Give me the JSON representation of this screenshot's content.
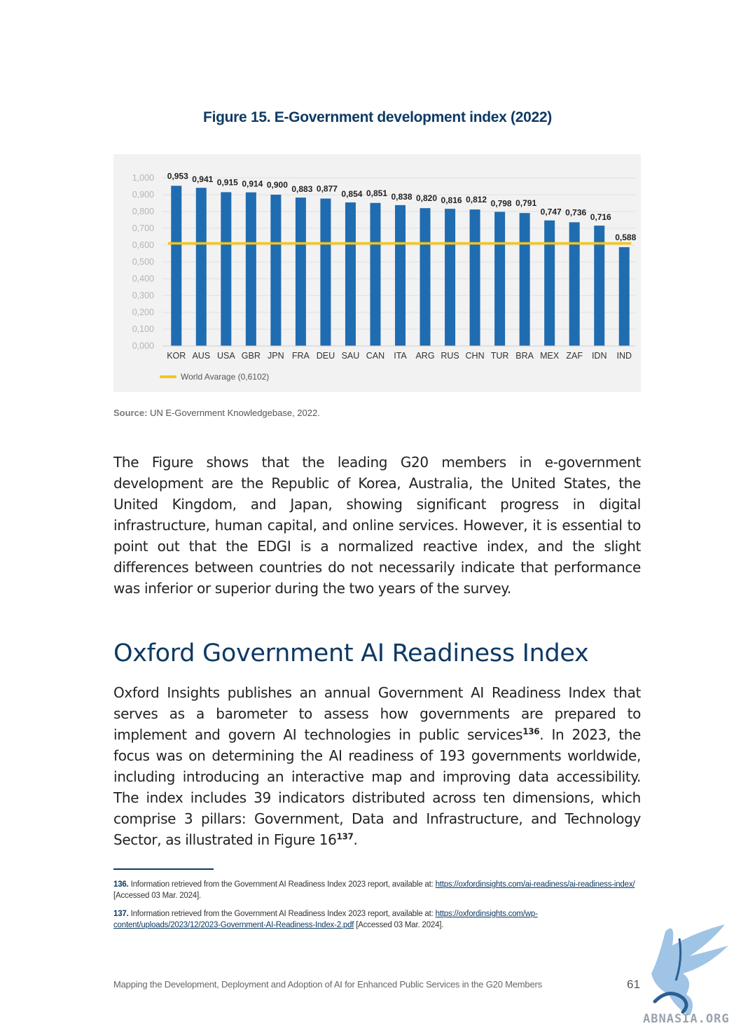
{
  "figure": {
    "title": "Figure 15. E-Government development index (2022)",
    "source_label": "Source:",
    "source_text": "UN E-Government Knowledgebase, 2022."
  },
  "chart_data": {
    "type": "bar",
    "title": "",
    "categories": [
      "KOR",
      "AUS",
      "USA",
      "GBR",
      "JPN",
      "FRA",
      "DEU",
      "SAU",
      "CAN",
      "ITA",
      "ARG",
      "RUS",
      "CHN",
      "TUR",
      "BRA",
      "MEX",
      "ZAF",
      "IDN",
      "IND"
    ],
    "values": [
      0.953,
      0.941,
      0.915,
      0.914,
      0.9,
      0.883,
      0.877,
      0.854,
      0.851,
      0.838,
      0.82,
      0.816,
      0.812,
      0.798,
      0.791,
      0.747,
      0.736,
      0.716,
      0.588
    ],
    "value_labels": [
      "0,953",
      "0,941",
      "0,915",
      "0,914",
      "0,900",
      "0,883",
      "0,877",
      "0,854",
      "0,851",
      "0,838",
      "0,820",
      "0,816",
      "0,812",
      "0,798",
      "0,791",
      "0,747",
      "0,736",
      "0,716",
      "0,588"
    ],
    "ylim": [
      0,
      1
    ],
    "yticks": [
      "0,000",
      "0,100",
      "0,200",
      "0,300",
      "0,400",
      "0,500",
      "0,600",
      "0,700",
      "0,800",
      "0,900",
      "1,000"
    ],
    "reference_line": {
      "name": "World Avarage (0,6102)",
      "value": 0.6102
    },
    "grid": true,
    "legend_position": "bottom-left",
    "colors": {
      "bar": "#1f6cb0",
      "reference": "#f5c518",
      "background": "#f2f2f2"
    }
  },
  "body": {
    "paragraph1": "The Figure shows that the leading G20 members in e-government development are the Republic of Korea, Australia, the United States, the United Kingdom, and Japan, showing significant progress in digital infrastructure, human capital, and online services. However, it is essential to point out that the EDGI is a normalized reactive index, and the slight differences between countries do not necessarily indicate that performance was inferior or superior during the two years of the survey.",
    "heading": "Oxford Government AI Readiness Index",
    "paragraph2_a": "Oxford Insights publishes an annual Government AI Readiness Index that serves as a barometer to assess how governments are prepared to implement and govern AI technologies in public services",
    "paragraph2_sup1": "136",
    "paragraph2_b": ". In 2023, the focus was on determining the AI readiness of 193 governments worldwide, including introducing an interactive map and improving data accessibility. The index includes 39 indicators distributed across ten dimensions, which comprise 3 pillars: Government, Data and Infrastructure, and Technology Sector, as illustrated in Figure 16",
    "paragraph2_sup2": "137",
    "paragraph2_c": "."
  },
  "footnotes": [
    {
      "number": "136.",
      "text": "Information retrieved from the Government AI Readiness Index 2023 report, available at:",
      "link": "https://oxfordinsights.com/ai-readiness/ai-readiness-index/",
      "after": "[Accessed 03 Mar. 2024]."
    },
    {
      "number": "137.",
      "text": "Information retrieved from the Government AI Readiness Index 2023 report, available at:",
      "link": "https://oxfordinsights.com/wp-content/uploads/2023/12/2023-Government-AI-Readiness-Index-2.pdf",
      "after": "[Accessed 03 Mar. 2024]."
    }
  ],
  "footer": {
    "text": "Mapping the Development, Deployment and Adoption of AI for Enhanced Public Services in the G20 Members",
    "page_number": "61",
    "watermark": "ABNASIA.ORG"
  }
}
